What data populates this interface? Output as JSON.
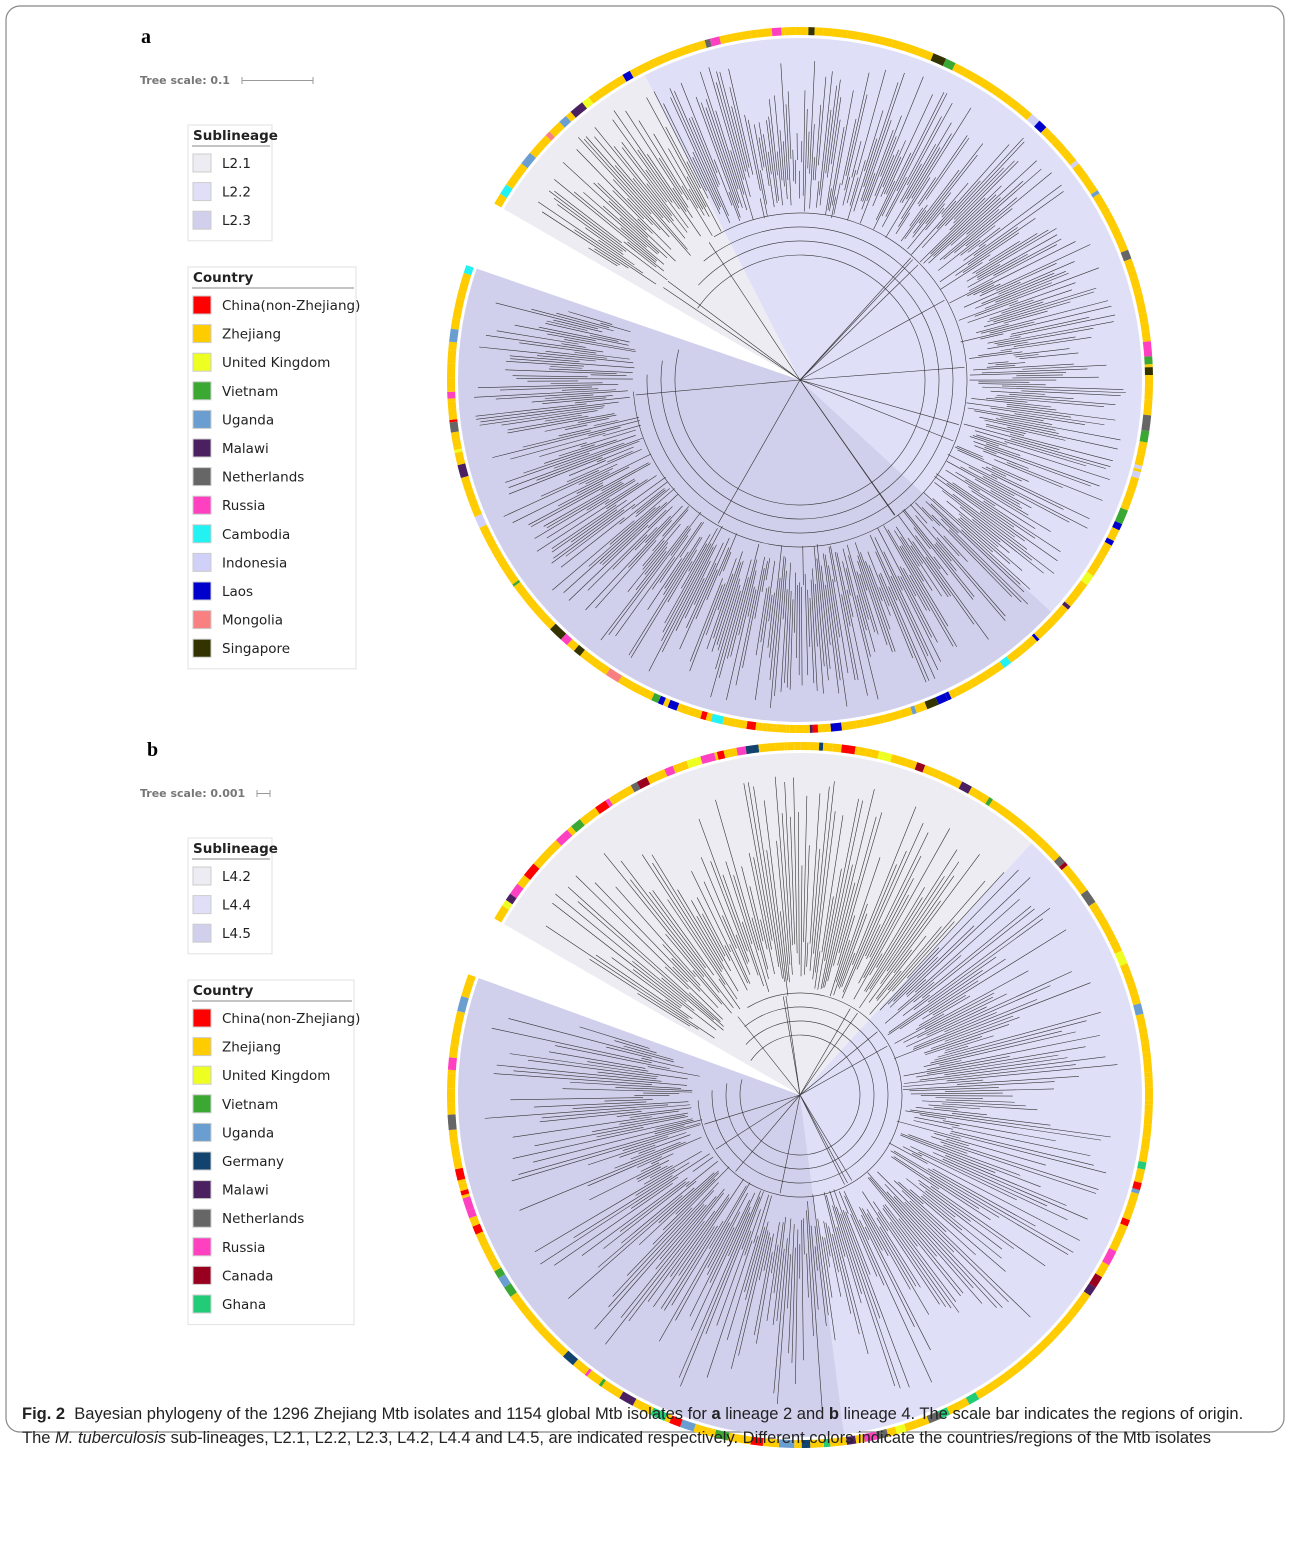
{
  "panels": [
    {
      "label": "a",
      "tree_scale": "Tree scale: 0.1",
      "sublineage": {
        "title": "Sublineage",
        "items": [
          {
            "label": "L2.1",
            "color": "#ececf2"
          },
          {
            "label": "L2.2",
            "color": "#dfdff8"
          },
          {
            "label": "L2.3",
            "color": "#d0d0ec"
          }
        ]
      },
      "country": {
        "title": "Country",
        "items": [
          {
            "label": "China(non-Zhejiang)",
            "color": "#ff0000"
          },
          {
            "label": "Zhejiang",
            "color": "#ffcc00"
          },
          {
            "label": "United Kingdom",
            "color": "#eeff22"
          },
          {
            "label": "Vietnam",
            "color": "#3aa832"
          },
          {
            "label": "Uganda",
            "color": "#6a9ed0"
          },
          {
            "label": "Malawi",
            "color": "#4b2060"
          },
          {
            "label": "Netherlands",
            "color": "#666666"
          },
          {
            "label": "Russia",
            "color": "#ff40c0"
          },
          {
            "label": "Cambodia",
            "color": "#22f2f2"
          },
          {
            "label": "Indonesia",
            "color": "#d0d0f8"
          },
          {
            "label": "Laos",
            "color": "#0000cc"
          },
          {
            "label": "Mongolia",
            "color": "#f88080"
          },
          {
            "label": "Singapore",
            "color": "#333300"
          }
        ]
      }
    },
    {
      "label": "b",
      "tree_scale": "Tree scale: 0.001",
      "sublineage": {
        "title": "Sublineage",
        "items": [
          {
            "label": "L4.2",
            "color": "#ececf2"
          },
          {
            "label": "L4.4",
            "color": "#dfdff8"
          },
          {
            "label": "L4.5",
            "color": "#d0d0ec"
          }
        ]
      },
      "country": {
        "title": "Country",
        "items": [
          {
            "label": "China(non-Zhejiang)",
            "color": "#ff0000"
          },
          {
            "label": "Zhejiang",
            "color": "#ffcc00"
          },
          {
            "label": "United Kingdom",
            "color": "#eeff22"
          },
          {
            "label": "Vietnam",
            "color": "#3aa832"
          },
          {
            "label": "Uganda",
            "color": "#6a9ed0"
          },
          {
            "label": "Germany",
            "color": "#12426e"
          },
          {
            "label": "Malawi",
            "color": "#4b2060"
          },
          {
            "label": "Netherlands",
            "color": "#666666"
          },
          {
            "label": "Russia",
            "color": "#ff40c0"
          },
          {
            "label": "Canada",
            "color": "#99001f"
          },
          {
            "label": "Ghana",
            "color": "#22cc77"
          }
        ]
      }
    }
  ],
  "caption": [
    {
      "text": "Fig. 2",
      "style": "bold"
    },
    {
      "text": "  Bayesian phylogeny of the 1296 Zhejiang Mtb isolates and 1154 global Mtb isolates for "
    },
    {
      "text": "a",
      "style": "bold"
    },
    {
      "text": " lineage 2 and "
    },
    {
      "text": "b",
      "style": "bold"
    },
    {
      "text": " lineage 4. The scale bar indicates the regions of origin. The "
    },
    {
      "text": "M. tuberculosis",
      "style": "italic"
    },
    {
      "text": " sub-lineages, L2.1, L2.2, L2.3, L4.2, L4.4 and L4.5, are indicated respectively. Different colors indicate the countries/regions of the Mtb isolates"
    }
  ]
}
